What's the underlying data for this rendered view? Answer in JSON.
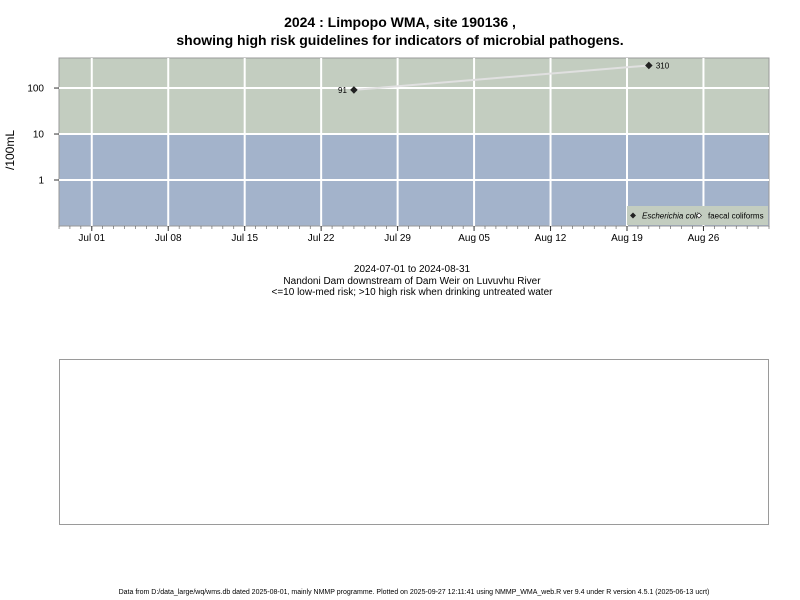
{
  "chart_data": {
    "type": "scatter",
    "title_line1": "2024 : Limpopo WMA, site 190136 ,",
    "title_line2": "showing high risk guidelines for indicators of microbial pathogens.",
    "ylabel": "/100mL",
    "y_scale": "log",
    "ylim": [
      0.1,
      450
    ],
    "y_ticks": [
      {
        "value": 1,
        "label": "1"
      },
      {
        "value": 10,
        "label": "10"
      },
      {
        "value": 100,
        "label": "100"
      }
    ],
    "x_range": [
      "2024-06-28",
      "2024-09-01"
    ],
    "x_ticks": [
      {
        "date": "2024-07-01",
        "label": "Jul 01"
      },
      {
        "date": "2024-07-08",
        "label": "Jul 08"
      },
      {
        "date": "2024-07-15",
        "label": "Jul 15"
      },
      {
        "date": "2024-07-22",
        "label": "Jul 22"
      },
      {
        "date": "2024-07-29",
        "label": "Jul 29"
      },
      {
        "date": "2024-08-05",
        "label": "Aug 05"
      },
      {
        "date": "2024-08-12",
        "label": "Aug 12"
      },
      {
        "date": "2024-08-19",
        "label": "Aug 19"
      },
      {
        "date": "2024-08-26",
        "label": "Aug 26"
      }
    ],
    "risk_threshold": 10,
    "colors": {
      "high_risk_band": "#c3cdc0",
      "low_risk_band": "#a3b3cb",
      "grid": "#ffffff",
      "series_line": "#e0e0e0",
      "marker": "#222222"
    },
    "grid": true,
    "legend_placement": "bottom-right",
    "series": [
      {
        "name": "Escherichia coli",
        "marker": "filled-diamond",
        "points": [
          {
            "x": "2024-07-25",
            "y": 91,
            "label": "91"
          },
          {
            "x": "2024-08-21",
            "y": 310,
            "label": "310"
          }
        ]
      },
      {
        "name": "faecal coliforms",
        "marker": "open-diamond",
        "points": []
      }
    ]
  },
  "subtitle": {
    "date_range": "2024-07-01 to 2024-08-31",
    "site_description": "Nandoni Dam downstream of Dam Weir on Luvuvhu River",
    "risk_note": "<=10 low-med risk; >10 high risk when drinking untreated water"
  },
  "footer": "Data from D:/data_large/wq/wms.db dated 2025-08-01, mainly NMMP programme. Plotted on 2025-09-27 12:11:41 using NMMP_WMA_web.R ver 9.4 under R version 4.5.1 (2025-06-13 ucrt)"
}
